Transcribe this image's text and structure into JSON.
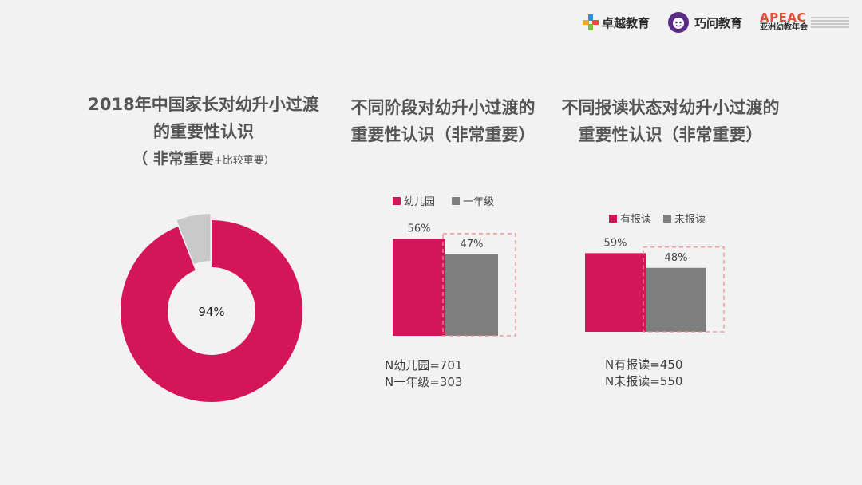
{
  "logos": {
    "zhuoyue": {
      "text": "卓越教育",
      "icon": "zhuoyue-cross-icon"
    },
    "qiaowen": {
      "text": "巧问教育",
      "icon": "qiaowen-face-icon"
    },
    "apeac": {
      "mark": "APEAC",
      "sub": "亚洲幼教年会",
      "icon": "apeac-logo"
    }
  },
  "colors": {
    "primary": "#d5155a",
    "secondary": "#7f7f7f",
    "light": "#c9c9c9",
    "highlight_box": "#f08c8c",
    "background": "#f2f2f2"
  },
  "panel1": {
    "title_line1": "2018年中国家长对幼升小过渡",
    "title_line2": "的重要性认识",
    "title_line3_main": "（ 非常重要",
    "title_line3_small": "+比较重要）",
    "center_label": "94%"
  },
  "panel2": {
    "title_line1": "不同阶段对幼升小过渡的",
    "title_line2": "重要性认识（非常重要）",
    "n_line1": "N幼儿园=701",
    "n_line2": "N一年级=303"
  },
  "panel3": {
    "title_line1": "不同报读状态对幼升小过渡的",
    "title_line2": "重要性认识（非常重要）",
    "n_line1": "N有报读=450",
    "n_line2": "N未报读=550"
  },
  "chart_data": [
    {
      "type": "pie",
      "style": "donut",
      "slices": [
        {
          "label": "非常重要+比较重要",
          "value": 94
        },
        {
          "label": "",
          "value": 6
        }
      ],
      "data_label": "94%"
    },
    {
      "type": "bar",
      "categories": [
        "幼儿园",
        "一年级"
      ],
      "values": [
        56,
        47
      ],
      "data_labels": [
        "56%",
        "47%"
      ],
      "legend": [
        "幼儿园",
        "一年级"
      ],
      "legend_position": "top",
      "ylim": [
        0,
        70
      ]
    },
    {
      "type": "bar",
      "categories": [
        "有报读",
        "未报读"
      ],
      "values": [
        59,
        48
      ],
      "data_labels": [
        "59%",
        "48%"
      ],
      "legend": [
        "有报读",
        "未报读"
      ],
      "legend_position": "top",
      "ylim": [
        0,
        70
      ]
    }
  ]
}
